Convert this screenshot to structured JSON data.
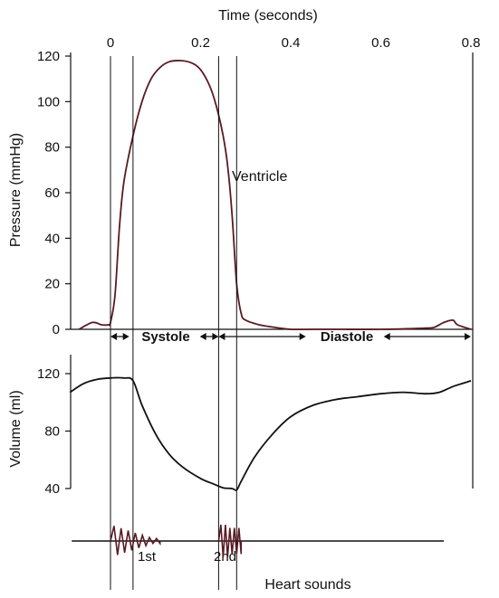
{
  "chart_data": {
    "type": "line",
    "title": "",
    "x_axis": {
      "label": "Time (seconds)",
      "ticks": [
        0,
        0.2,
        0.4,
        0.6,
        0.8
      ],
      "tick_labels": [
        "0",
        "0.2",
        "0.4",
        "0.6",
        "0.8"
      ],
      "range": [
        -0.09,
        0.8
      ]
    },
    "panels": [
      {
        "id": "pressure",
        "ylabel": "Pressure (mmHg)",
        "ylim": [
          0,
          120
        ],
        "yticks": [
          0,
          20,
          40,
          60,
          80,
          100,
          120
        ],
        "series": [
          {
            "name": "Ventricle",
            "x": [
              -0.07,
              -0.04,
              -0.02,
              -0.005,
              0.0,
              0.01,
              0.02,
              0.03,
              0.05,
              0.07,
              0.09,
              0.11,
              0.13,
              0.155,
              0.18,
              0.2,
              0.22,
              0.235,
              0.25,
              0.26,
              0.27,
              0.28,
              0.29,
              0.3,
              0.33,
              0.36,
              0.4,
              0.45,
              0.5,
              0.6,
              0.7,
              0.72,
              0.74,
              0.76,
              0.77,
              0.8
            ],
            "y": [
              0,
              3,
              2,
              2,
              3,
              15,
              45,
              65,
              85,
              100,
              110,
              115,
              117.5,
              118,
              117,
              114,
              107,
              98,
              85,
              72,
              50,
              20,
              7,
              4,
              2,
              1,
              0,
              0,
              0,
              0,
              0.5,
              1,
              3,
              4,
              2,
              0
            ]
          }
        ]
      },
      {
        "id": "volume",
        "ylabel": "Volume (ml)",
        "ylim": [
          40,
          130
        ],
        "yticks": [
          40,
          80,
          120
        ],
        "series": [
          {
            "name": "",
            "x": [
              -0.09,
              -0.06,
              -0.03,
              0.0,
              0.03,
              0.05,
              0.07,
              0.1,
              0.13,
              0.16,
              0.2,
              0.23,
              0.25,
              0.27,
              0.28,
              0.29,
              0.32,
              0.36,
              0.4,
              0.45,
              0.5,
              0.55,
              0.6,
              0.65,
              0.7,
              0.73,
              0.76,
              0.8
            ],
            "y": [
              107,
              113,
              116,
              117,
              117,
              115,
              98,
              78,
              64,
              55,
              47,
              43,
              40.5,
              40,
              39,
              45,
              62,
              78,
              90,
              98,
              102,
              104,
              106,
              107,
              106,
              107,
              111,
              115
            ]
          }
        ]
      }
    ],
    "phases": [
      {
        "label": "Systole",
        "x_start": 0.0,
        "x_end": 0.24
      },
      {
        "label": "Diastole",
        "x_start": 0.24,
        "x_end": 0.8
      }
    ],
    "markers_x": [
      0.0,
      0.05,
      0.24,
      0.28
    ],
    "heart_sounds": {
      "label": "Heart sounds",
      "events": [
        {
          "label": "1st",
          "x_start": 0.0,
          "x_end": 0.11
        },
        {
          "label": "2nd",
          "x_start": 0.24,
          "x_end": 0.29
        }
      ],
      "baseline_range": [
        -0.09,
        0.74
      ]
    },
    "grid": false,
    "legend": "none",
    "line_color": "#5a1a22"
  }
}
